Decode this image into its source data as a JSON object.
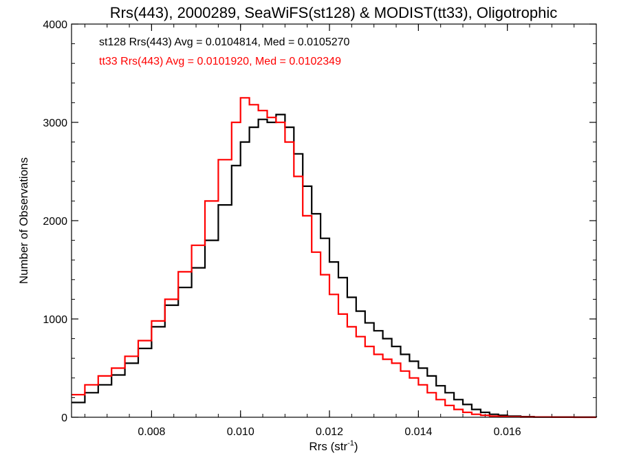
{
  "chart_data": {
    "type": "line",
    "title": "Rrs(443), 2000289, SeaWiFS(st128) & MODIST(tt33), Oligotrophic",
    "xlabel": "Rrs (str",
    "xlabel_sup": "-1",
    "xlabel_close": ")",
    "ylabel": "Number of Observations",
    "xlim": [
      0.0062,
      0.018
    ],
    "ylim": [
      0,
      4000
    ],
    "x_ticks": [
      0.008,
      0.01,
      0.012,
      0.014,
      0.016
    ],
    "x_tick_labels": [
      "0.008",
      "0.010",
      "0.012",
      "0.014",
      "0.016"
    ],
    "y_ticks": [
      0,
      1000,
      2000,
      3000,
      4000
    ],
    "y_tick_labels": [
      "0",
      "1000",
      "2000",
      "3000",
      "4000"
    ],
    "grid": false,
    "legend_placement": "top-left",
    "series": [
      {
        "name": "st128",
        "color": "#000000",
        "legend": "st128 Rrs(443) Avg = 0.0104814, Med = 0.0105270",
        "x": [
          0.0062,
          0.0065,
          0.0068,
          0.0071,
          0.0074,
          0.0077,
          0.008,
          0.0083,
          0.0086,
          0.0089,
          0.0092,
          0.0095,
          0.0098,
          0.01,
          0.0102,
          0.0104,
          0.0106,
          0.0108,
          0.011,
          0.0112,
          0.0114,
          0.0116,
          0.0118,
          0.012,
          0.0122,
          0.0124,
          0.0126,
          0.0128,
          0.013,
          0.0132,
          0.0134,
          0.0136,
          0.0138,
          0.014,
          0.0142,
          0.0144,
          0.0146,
          0.0148,
          0.015,
          0.0152,
          0.0154,
          0.0156,
          0.0158,
          0.016,
          0.0163,
          0.0166,
          0.017,
          0.0175,
          0.018
        ],
        "values": [
          150,
          250,
          330,
          430,
          550,
          700,
          920,
          1140,
          1320,
          1520,
          1800,
          2160,
          2560,
          2800,
          2950,
          3030,
          3000,
          3080,
          2950,
          2680,
          2350,
          2070,
          1820,
          1580,
          1420,
          1220,
          1080,
          960,
          880,
          800,
          720,
          640,
          570,
          500,
          420,
          320,
          250,
          180,
          130,
          80,
          50,
          30,
          20,
          12,
          6,
          3,
          2,
          1,
          0
        ]
      },
      {
        "name": "tt33",
        "color": "#ff0000",
        "legend": "tt33 Rrs(443) Avg = 0.0101920, Med = 0.0102349",
        "x": [
          0.0062,
          0.0065,
          0.0068,
          0.0071,
          0.0074,
          0.0077,
          0.008,
          0.0083,
          0.0086,
          0.0089,
          0.0092,
          0.0095,
          0.0098,
          0.01,
          0.0102,
          0.0104,
          0.0106,
          0.0108,
          0.011,
          0.0112,
          0.0114,
          0.0116,
          0.0118,
          0.012,
          0.0122,
          0.0124,
          0.0126,
          0.0128,
          0.013,
          0.0132,
          0.0134,
          0.0136,
          0.0138,
          0.014,
          0.0142,
          0.0144,
          0.0146,
          0.0148,
          0.015,
          0.0152,
          0.0154,
          0.0156,
          0.0158,
          0.016,
          0.0163,
          0.0166,
          0.017,
          0.0175,
          0.018
        ],
        "values": [
          230,
          330,
          420,
          500,
          620,
          780,
          980,
          1200,
          1480,
          1750,
          2200,
          2620,
          3000,
          3250,
          3180,
          3120,
          3050,
          3000,
          2800,
          2450,
          2050,
          1680,
          1450,
          1250,
          1050,
          920,
          820,
          720,
          640,
          590,
          550,
          470,
          400,
          330,
          250,
          180,
          120,
          80,
          50,
          30,
          20,
          12,
          8,
          5,
          3,
          2,
          1,
          0,
          0
        ]
      }
    ]
  }
}
